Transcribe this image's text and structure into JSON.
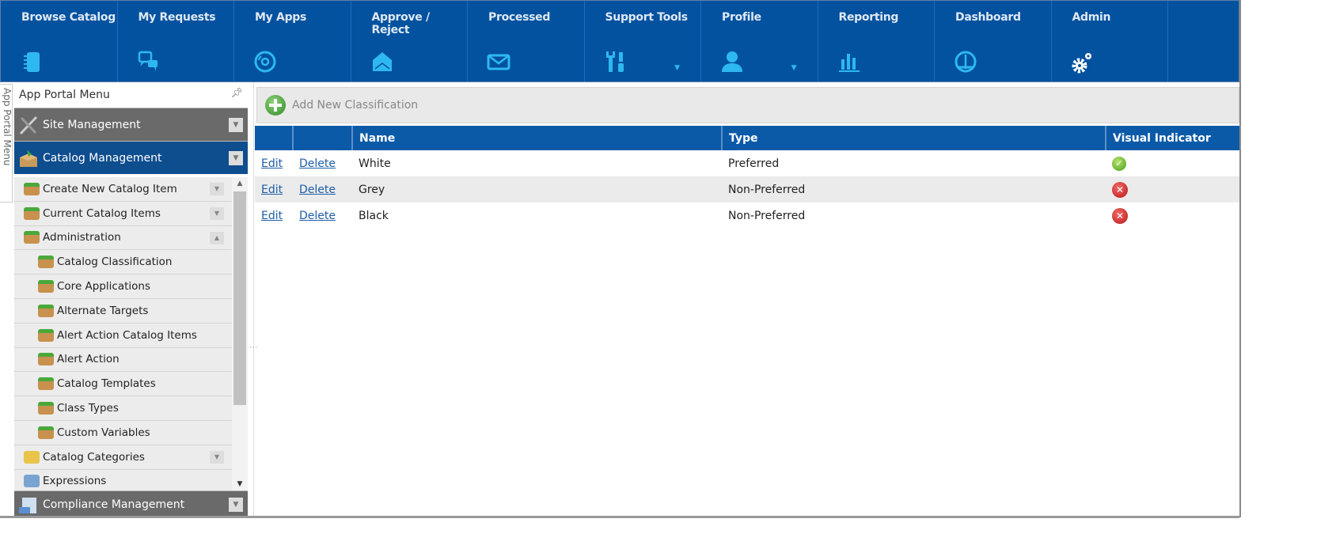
{
  "nav": [
    {
      "label": "Browse Catalog",
      "icon": "notebook-icon"
    },
    {
      "label": "My Requests",
      "icon": "chat-bubbles-icon"
    },
    {
      "label": "My Apps",
      "icon": "disc-icon"
    },
    {
      "label": "Approve / Reject",
      "icon": "open-envelope-icon"
    },
    {
      "label": "Processed",
      "icon": "envelope-icon"
    },
    {
      "label": "Support Tools",
      "icon": "tools-icon",
      "dropdown": true
    },
    {
      "label": "Profile",
      "icon": "user-icon",
      "dropdown": true
    },
    {
      "label": "Reporting",
      "icon": "bar-chart-icon"
    },
    {
      "label": "Dashboard",
      "icon": "gauge-icon"
    },
    {
      "label": "Admin",
      "icon": "gears-icon"
    }
  ],
  "sidebar": {
    "vertical_tab": "App Portal Menu",
    "title": "App Portal Menu",
    "groups": {
      "site": "Site Management",
      "catalog": "Catalog Management",
      "compliance": "Compliance Management"
    },
    "items": [
      {
        "label": "Create New Catalog Item",
        "level": 1,
        "dropdown": true
      },
      {
        "label": "Current Catalog Items",
        "level": 1,
        "dropdown": true
      },
      {
        "label": "Administration",
        "level": 1,
        "dropdown": true
      },
      {
        "label": "Catalog Classification",
        "level": 2
      },
      {
        "label": "Core Applications",
        "level": 2
      },
      {
        "label": "Alternate Targets",
        "level": 2
      },
      {
        "label": "Alert Action Catalog Items",
        "level": 2
      },
      {
        "label": "Alert Action",
        "level": 2
      },
      {
        "label": "Catalog Templates",
        "level": 2
      },
      {
        "label": "Class Types",
        "level": 2
      },
      {
        "label": "Custom Variables",
        "level": 2
      },
      {
        "label": "Catalog Categories",
        "level": 1,
        "dropdown": true
      },
      {
        "label": "Expressions",
        "level": 1
      }
    ]
  },
  "main": {
    "add_button": "Add New Classification",
    "columns": [
      "",
      "",
      "Name",
      "Type",
      "Visual Indicator"
    ],
    "edit_label": "Edit",
    "delete_label": "Delete",
    "rows": [
      {
        "name": "White",
        "type": "Preferred",
        "indicator": "check"
      },
      {
        "name": "Grey",
        "type": "Non-Preferred",
        "indicator": "x"
      },
      {
        "name": "Black",
        "type": "Non-Preferred",
        "indicator": "x"
      }
    ]
  },
  "colors": {
    "nav_bg": "#0252a0",
    "icon_cyan": "#2eb8f0",
    "header_bg": "#0b5aa8",
    "link": "#1e5ea8"
  }
}
